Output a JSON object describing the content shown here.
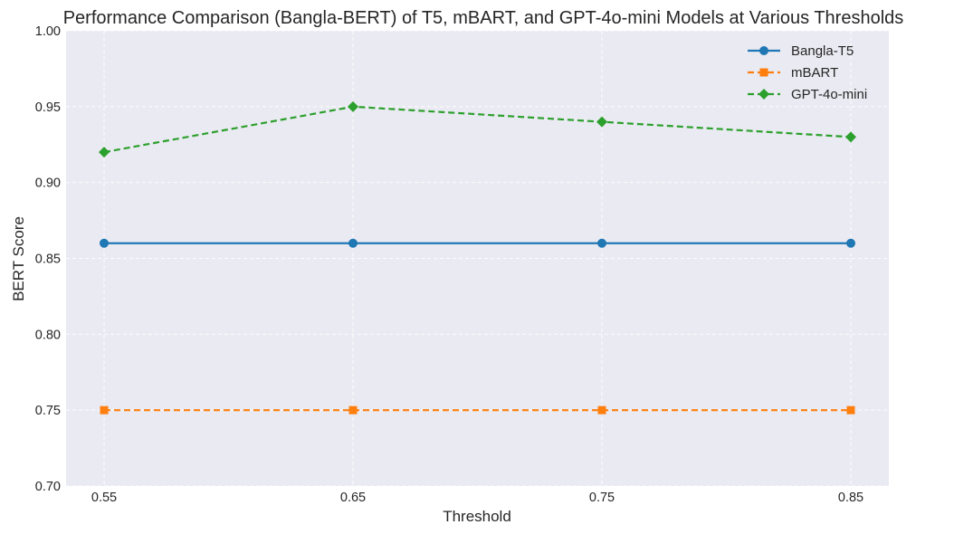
{
  "chart_data": {
    "type": "line",
    "title": "Performance Comparison (Bangla-BERT) of T5, mBART, and GPT-4o-mini Models at Various Thresholds",
    "xlabel": "Threshold",
    "ylabel": "BERT Score",
    "x": [
      "0.55",
      "0.65",
      "0.75",
      "0.85"
    ],
    "y_ticks": [
      "0.70",
      "0.75",
      "0.80",
      "0.85",
      "0.90",
      "0.95",
      "1.00"
    ],
    "ylim": [
      0.7,
      1.0
    ],
    "grid": true,
    "legend_position": "top-right",
    "series": [
      {
        "name": "Bangla-T5",
        "values": [
          0.86,
          0.86,
          0.86,
          0.86
        ],
        "color": "#1f77b4",
        "marker": "circle",
        "line_style": "solid"
      },
      {
        "name": "mBART",
        "values": [
          0.75,
          0.75,
          0.75,
          0.75
        ],
        "color": "#ff7f0e",
        "marker": "square",
        "line_style": "dashed"
      },
      {
        "name": "GPT-4o-mini",
        "values": [
          0.92,
          0.95,
          0.94,
          0.93
        ],
        "color": "#2ca02c",
        "marker": "diamond",
        "line_style": "dashed"
      }
    ],
    "plot_background": "#eaeaf2"
  }
}
